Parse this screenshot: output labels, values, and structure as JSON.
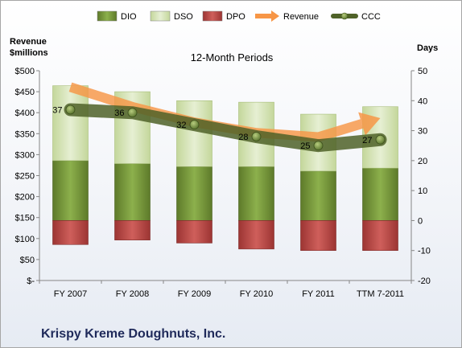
{
  "chart_data": {
    "type": "bar",
    "title": "12-Month Periods",
    "company": "Krispy Kreme Doughnuts, Inc.",
    "categories": [
      "FY 2007",
      "FY 2008",
      "FY 2009",
      "FY 2010",
      "FY 2011",
      "TTM 7-2011"
    ],
    "left_axis": {
      "title_line1": "Revenue",
      "title_line2": "$millions",
      "ylim": [
        0,
        500
      ],
      "ticks": [
        0,
        50,
        100,
        150,
        200,
        250,
        300,
        350,
        400,
        450,
        500
      ],
      "tick_labels": [
        "$-",
        "$50",
        "$100",
        "$150",
        "$200",
        "$250",
        "$300",
        "$350",
        "$400",
        "$450",
        "$500"
      ]
    },
    "right_axis": {
      "title": "Days",
      "ylim": [
        -20,
        50
      ],
      "ticks": [
        -20,
        -10,
        0,
        10,
        20,
        30,
        40,
        50
      ],
      "tick_labels": [
        "-20",
        "-10",
        "0",
        "10",
        "20",
        "30",
        "40",
        "50"
      ]
    },
    "legend": {
      "position": "top",
      "items": [
        {
          "name": "DIO",
          "color": "#77933c"
        },
        {
          "name": "DSO",
          "color": "#d7e4bd"
        },
        {
          "name": "DPO",
          "color": "#c0504d"
        },
        {
          "name": "Revenue",
          "color": "#f79646"
        },
        {
          "name": "CCC",
          "color": "#4f6228"
        }
      ]
    },
    "series": [
      {
        "name": "DIO",
        "axis": "right",
        "values": [
          20.0,
          19.0,
          18.0,
          18.0,
          16.5,
          17.5
        ]
      },
      {
        "name": "DSO",
        "axis": "right",
        "values": [
          25.0,
          24.0,
          22.0,
          21.5,
          19.0,
          20.5
        ]
      },
      {
        "name": "DPO",
        "axis": "right",
        "values": [
          -8.0,
          -6.5,
          -7.5,
          -9.5,
          -10.0,
          -10.0
        ]
      },
      {
        "name": "Revenue",
        "axis": "left",
        "values": [
          461,
          414,
          377,
          352,
          342,
          387
        ]
      },
      {
        "name": "CCC",
        "axis": "right",
        "values": [
          37,
          36,
          32,
          28,
          25,
          27
        ]
      }
    ],
    "ccc_labels": [
      "37",
      "36",
      "32",
      "28",
      "25",
      "27"
    ],
    "grid": false
  }
}
